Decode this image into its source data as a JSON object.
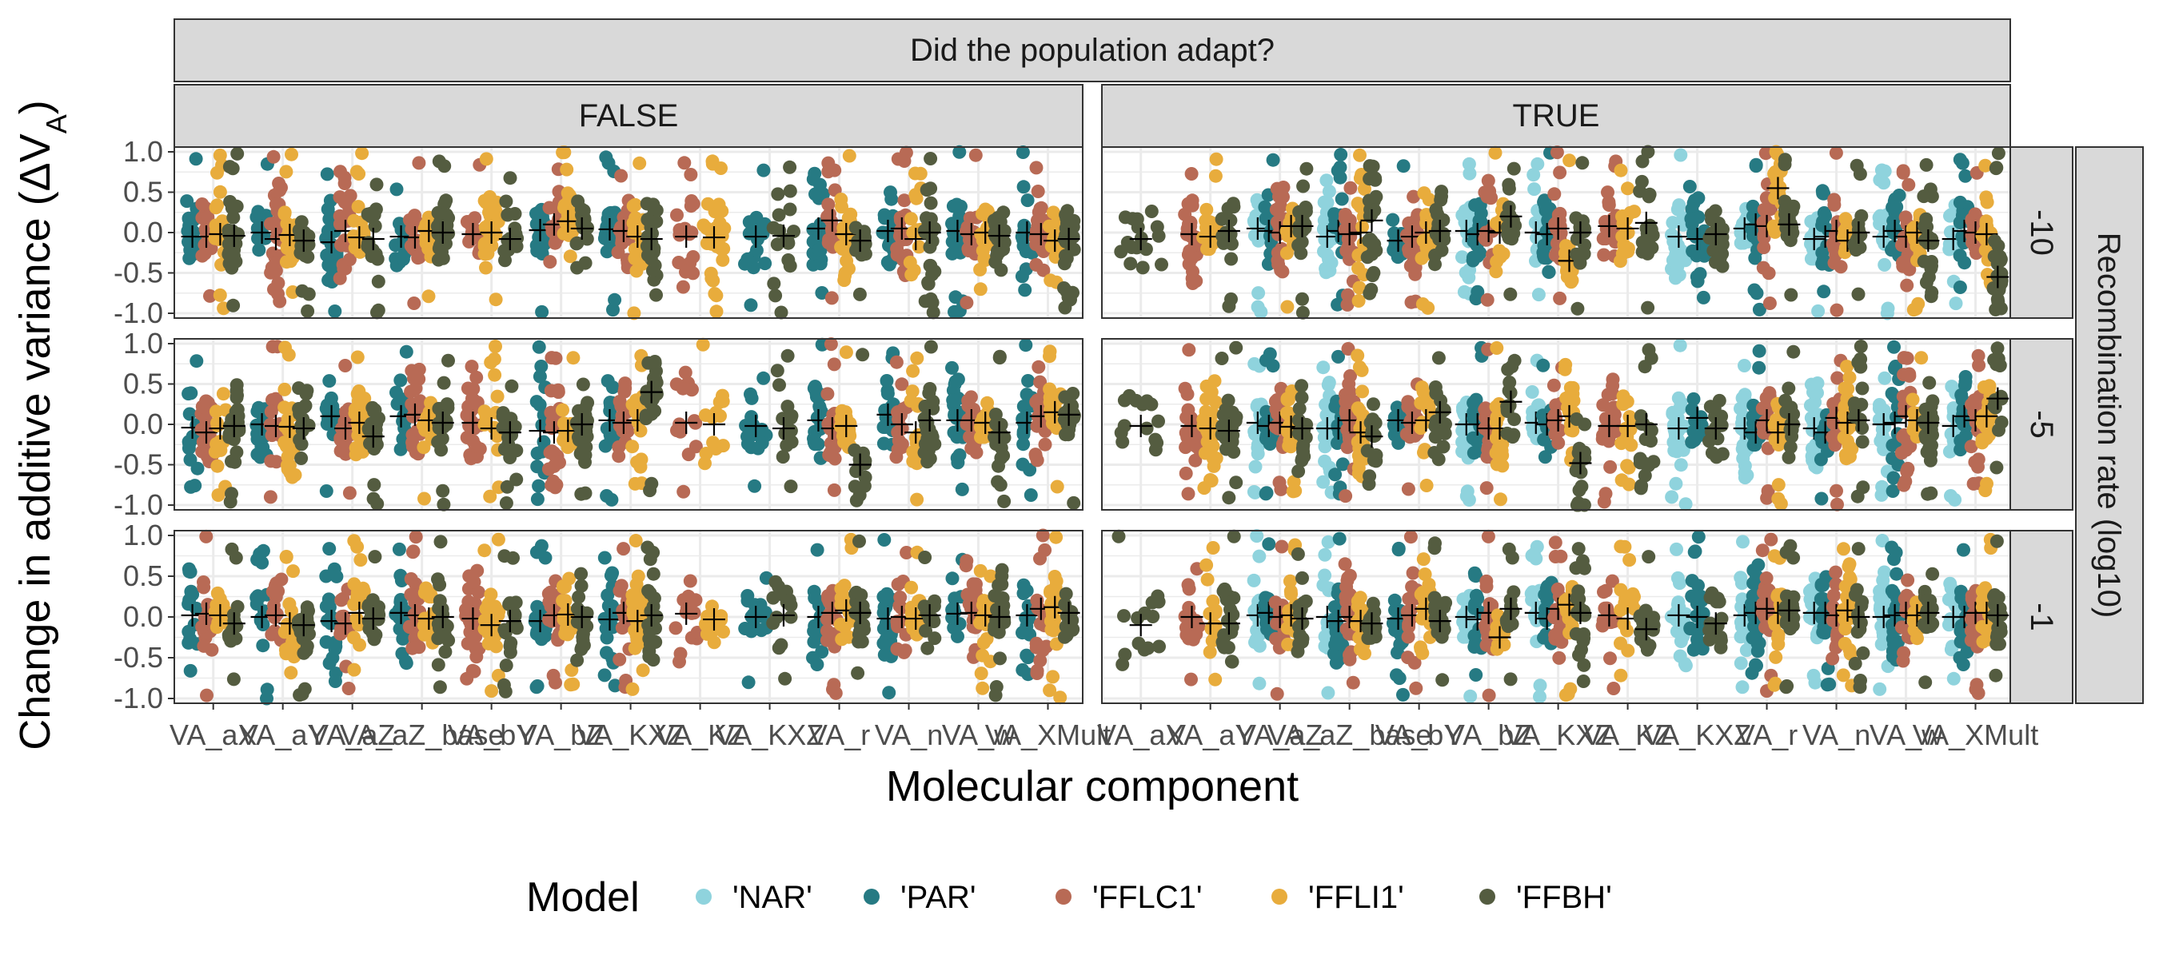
{
  "chart_data": {
    "type": "scatter",
    "subtype": "faceted jittered strip plot with mean markers",
    "column_strip_title": "Did the population adapt?",
    "column_facets": [
      "FALSE",
      "TRUE"
    ],
    "row_facets": [
      "-10",
      "-5",
      "-1"
    ],
    "row_strip_title": "Recombination rate (log10)",
    "xlabel": "Molecular component",
    "ylabel_main": "Change in additive variance (",
    "ylabel_delta": "Δ",
    "ylabel_v": "V",
    "ylabel_sub": "A",
    "ylabel_close": ")",
    "ylim": [
      -1,
      1
    ],
    "y_ticks": [
      1,
      0.5,
      0,
      -0.5,
      -1
    ],
    "y_tick_labels": [
      "1.0",
      "0.5",
      "0.0",
      "-0.5",
      "-1.0"
    ],
    "categories": [
      "VA_aX",
      "VA_aY",
      "VA_aZ",
      "VA_aZ_base",
      "VA_bY",
      "VA_bZ",
      "VA_KXZ",
      "VA_KZ",
      "VA_KXZ2",
      "VA_r",
      "VA_n",
      "VA_w",
      "VA_XMult"
    ],
    "x_tick_labels": [
      "VA_aX",
      "VA_aY",
      "VA_aZ",
      "VA_aZ_base",
      "VA_bY",
      "VA_bZ",
      "VA_KXZ",
      "VA_KZ",
      "VA_KXZ",
      "VA_r",
      "VA_n",
      "VA_w",
      "VA_XMult"
    ],
    "legend": {
      "title": "Model",
      "position": "bottom",
      "entries": [
        {
          "label": "'NAR'",
          "color": "#8fd3dd"
        },
        {
          "label": "'PAR'",
          "color": "#267a83"
        },
        {
          "label": "'FFLC1'",
          "color": "#b86a55"
        },
        {
          "label": "'FFLI1'",
          "color": "#e8ac3c"
        },
        {
          "label": "'FFBH'",
          "color": "#545c40"
        }
      ]
    },
    "series_colors": [
      "#8fd3dd",
      "#267a83",
      "#b86a55",
      "#e8ac3c",
      "#545c40"
    ],
    "presence": {
      "FALSE": [
        [
          0,
          1,
          1,
          1,
          1
        ],
        [
          0,
          1,
          1,
          1,
          1
        ],
        [
          0,
          1,
          1,
          1,
          1
        ],
        [
          0,
          1,
          1,
          1,
          1
        ],
        [
          0,
          0,
          1,
          1,
          1
        ],
        [
          0,
          1,
          1,
          1,
          1
        ],
        [
          0,
          1,
          1,
          1,
          1
        ],
        [
          0,
          0,
          1,
          1,
          0
        ],
        [
          0,
          1,
          0,
          0,
          1
        ],
        [
          0,
          1,
          1,
          1,
          1
        ],
        [
          0,
          1,
          1,
          1,
          1
        ],
        [
          0,
          1,
          1,
          1,
          1
        ],
        [
          0,
          1,
          1,
          1,
          1
        ]
      ],
      "TRUE": [
        [
          0,
          0,
          0,
          0,
          1
        ],
        [
          0,
          0,
          1,
          1,
          1
        ],
        [
          1,
          1,
          1,
          1,
          1
        ],
        [
          1,
          1,
          1,
          1,
          1
        ],
        [
          0,
          1,
          1,
          1,
          1
        ],
        [
          1,
          1,
          1,
          1,
          1
        ],
        [
          1,
          1,
          1,
          1,
          1
        ],
        [
          0,
          0,
          1,
          1,
          1
        ],
        [
          1,
          1,
          0,
          0,
          1
        ],
        [
          1,
          1,
          1,
          1,
          1
        ],
        [
          1,
          1,
          1,
          1,
          1
        ],
        [
          1,
          1,
          1,
          1,
          1
        ],
        [
          1,
          1,
          1,
          1,
          1
        ]
      ]
    },
    "group_means": {
      "FALSE": {
        "-10": [
          [
            null,
            -0.05,
            -0.05,
            -0.02,
            -0.04
          ],
          [
            null,
            0.0,
            -0.08,
            -0.03,
            -0.1
          ],
          [
            null,
            -0.12,
            0.02,
            -0.06,
            -0.08
          ],
          [
            null,
            -0.05,
            -0.06,
            0.02,
            0.0
          ],
          [
            null,
            null,
            -0.02,
            0.0,
            -0.08
          ],
          [
            null,
            0.03,
            0.1,
            0.14,
            0.05
          ],
          [
            null,
            0.04,
            0.02,
            -0.05,
            -0.08
          ],
          [
            null,
            null,
            -0.05,
            -0.06,
            null
          ],
          [
            null,
            -0.05,
            null,
            null,
            -0.04
          ],
          [
            null,
            0.05,
            0.15,
            -0.02,
            -0.1
          ],
          [
            null,
            0.02,
            0.05,
            -0.08,
            0.0
          ],
          [
            null,
            0.02,
            -0.02,
            0.0,
            -0.04
          ],
          [
            null,
            0.0,
            -0.02,
            -0.1,
            -0.08
          ]
        ],
        "-5": [
          [
            null,
            -0.04,
            -0.1,
            -0.05,
            -0.02
          ],
          [
            null,
            0.0,
            -0.02,
            -0.03,
            -0.05
          ],
          [
            null,
            0.1,
            -0.05,
            0.02,
            -0.15
          ],
          [
            null,
            0.1,
            0.12,
            0.05,
            0.02
          ],
          [
            null,
            null,
            0.02,
            -0.05,
            -0.1
          ],
          [
            null,
            -0.08,
            -0.1,
            -0.08,
            0.0
          ],
          [
            null,
            0.05,
            0.02,
            0.05,
            0.4
          ],
          [
            null,
            null,
            0.02,
            0.0,
            -0.38
          ],
          [
            null,
            -0.02,
            null,
            null,
            -0.05
          ],
          [
            null,
            0.05,
            -0.05,
            -0.02,
            -0.5
          ],
          [
            null,
            0.12,
            0.0,
            -0.1,
            0.05
          ],
          [
            null,
            0.05,
            0.05,
            0.02,
            -0.1
          ],
          [
            null,
            0.02,
            0.1,
            0.15,
            0.12
          ]
        ],
        "-1": [
          [
            null,
            0.02,
            0.04,
            0.02,
            -0.08
          ],
          [
            null,
            0.0,
            0.02,
            -0.08,
            -0.1
          ],
          [
            null,
            -0.05,
            -0.08,
            0.05,
            -0.02
          ],
          [
            null,
            0.05,
            0.02,
            -0.02,
            0.0
          ],
          [
            null,
            null,
            -0.02,
            -0.1,
            -0.05
          ],
          [
            null,
            -0.05,
            0.02,
            0.03,
            0.0
          ],
          [
            null,
            -0.03,
            0.05,
            -0.05,
            0.02
          ],
          [
            null,
            null,
            0.04,
            -0.03,
            0.05
          ],
          [
            null,
            0.0,
            null,
            null,
            0.02
          ],
          [
            null,
            0.0,
            0.05,
            0.08,
            0.05
          ],
          [
            null,
            -0.02,
            0.0,
            -0.02,
            0.02
          ],
          [
            null,
            0.04,
            0.05,
            0.02,
            0.0
          ],
          [
            null,
            0.02,
            0.1,
            0.12,
            0.05
          ]
        ]
      },
      "TRUE": {
        "-10": [
          [
            null,
            null,
            null,
            null,
            -0.08
          ],
          [
            null,
            null,
            -0.02,
            -0.05,
            0.02
          ],
          [
            0.05,
            0.02,
            0.0,
            0.08,
            0.08
          ],
          [
            -0.05,
            0.02,
            -0.02,
            0.0,
            0.15
          ],
          [
            null,
            -0.1,
            -0.05,
            0.0,
            0.02
          ],
          [
            0.02,
            -0.02,
            0.02,
            0.0,
            0.2
          ],
          [
            0.0,
            -0.02,
            0.05,
            -0.35,
            0.0
          ],
          [
            null,
            null,
            0.08,
            0.05,
            0.12
          ],
          [
            -0.05,
            -0.08,
            null,
            null,
            -0.02
          ],
          [
            0.05,
            0.1,
            0.08,
            0.55,
            0.1
          ],
          [
            -0.08,
            -0.05,
            0.02,
            -0.1,
            0.0
          ],
          [
            -0.05,
            0.02,
            -0.05,
            0.0,
            -0.1
          ],
          [
            -0.08,
            0.02,
            0.0,
            -0.02,
            -0.55
          ]
        ],
        "-5": [
          [
            null,
            null,
            null,
            null,
            -0.02
          ],
          [
            null,
            null,
            -0.02,
            -0.05,
            -0.08
          ],
          [
            0.02,
            -0.02,
            0.02,
            -0.03,
            -0.05
          ],
          [
            -0.05,
            -0.05,
            0.05,
            -0.1,
            -0.15
          ],
          [
            null,
            0.05,
            0.02,
            0.05,
            0.15
          ],
          [
            0.0,
            0.0,
            -0.05,
            -0.05,
            0.28
          ],
          [
            0.02,
            0.0,
            0.05,
            0.1,
            -0.48
          ],
          [
            null,
            null,
            -0.02,
            -0.02,
            0.0
          ],
          [
            -0.05,
            0.08,
            null,
            null,
            -0.05
          ],
          [
            -0.05,
            -0.1,
            0.05,
            -0.1,
            0.0
          ],
          [
            -0.05,
            -0.1,
            0.08,
            0.02,
            0.05
          ],
          [
            0.0,
            0.02,
            0.1,
            0.05,
            0.02
          ],
          [
            -0.02,
            0.1,
            0.05,
            0.1,
            0.32
          ]
        ],
        "-1": [
          [
            null,
            null,
            null,
            null,
            -0.1
          ],
          [
            null,
            null,
            0.0,
            -0.08,
            -0.08
          ],
          [
            0.02,
            0.05,
            0.0,
            0.02,
            -0.02
          ],
          [
            0.0,
            -0.05,
            0.0,
            -0.05,
            -0.08
          ],
          [
            null,
            -0.02,
            0.02,
            0.1,
            -0.05
          ],
          [
            0.0,
            -0.03,
            0.05,
            -0.25,
            0.1
          ],
          [
            0.05,
            -0.02,
            0.1,
            0.15,
            0.05
          ],
          [
            null,
            null,
            0.02,
            -0.02,
            -0.15
          ],
          [
            0.02,
            0.0,
            null,
            null,
            -0.08
          ],
          [
            0.02,
            0.05,
            0.1,
            0.05,
            0.08
          ],
          [
            0.05,
            0.05,
            0.02,
            0.08,
            0.0
          ],
          [
            0.0,
            0.02,
            0.05,
            0.02,
            0.05
          ],
          [
            0.0,
            0.0,
            0.05,
            0.05,
            0.02
          ]
        ]
      }
    }
  }
}
